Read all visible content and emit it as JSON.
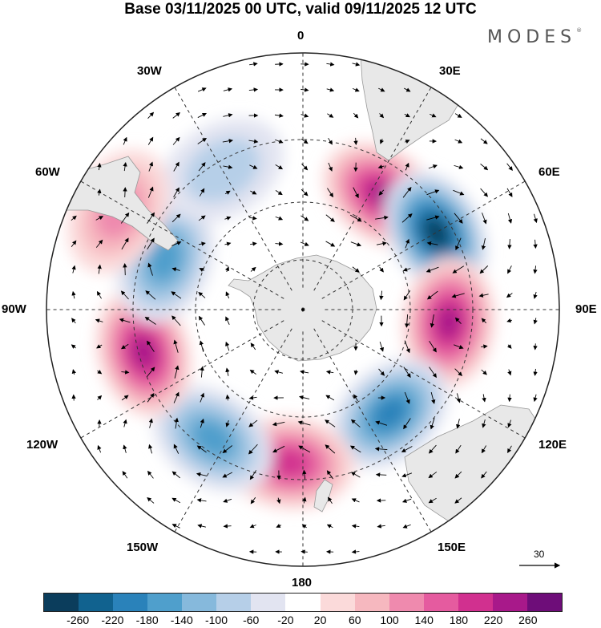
{
  "title": "Base 03/11/2025 00 UTC, valid 09/11/2025 12 UTC",
  "brand": "MODES",
  "brand_mark": "®",
  "longitude_labels": {
    "lon_0": "0",
    "lon_30e": "30E",
    "lon_60e": "60E",
    "lon_90e": "90E",
    "lon_120e": "120E",
    "lon_150e": "150E",
    "lon_180": "180",
    "lon_150w": "150W",
    "lon_120w": "120W",
    "lon_90w": "90W",
    "lon_60w": "60W",
    "lon_30w": "30W"
  },
  "reference_vector": "30",
  "colorbar": {
    "colors": [
      "#0b3d5c",
      "#11628f",
      "#2a82ba",
      "#4f9fcc",
      "#86b9dc",
      "#b6cfe8",
      "#e2e4f1",
      "#ffffff",
      "#fbdada",
      "#f6b8bf",
      "#ef8aae",
      "#e55b9f",
      "#d1308f",
      "#a8198a",
      "#6e0d79"
    ],
    "ticks": [
      "-260",
      "-220",
      "-180",
      "-140",
      "-100",
      "-60",
      "-20",
      "20",
      "60",
      "100",
      "140",
      "180",
      "220",
      "260"
    ]
  },
  "anomalies": [
    {
      "lon": 35,
      "lat": -52,
      "value": 240
    },
    {
      "lon": 60,
      "lat": -48,
      "value": -260
    },
    {
      "lon": 95,
      "lat": -50,
      "value": 230
    },
    {
      "lon": 140,
      "lat": -53,
      "value": -180
    },
    {
      "lon": 185,
      "lat": -48,
      "value": 200
    },
    {
      "lon": 215,
      "lat": -47,
      "value": -140
    },
    {
      "lon": 255,
      "lat": -45,
      "value": 220
    },
    {
      "lon": 290,
      "lat": -50,
      "value": -170
    },
    {
      "lon": 330,
      "lat": -46,
      "value": -90
    },
    {
      "lon": 298,
      "lat": -33,
      "value": 110
    }
  ]
}
